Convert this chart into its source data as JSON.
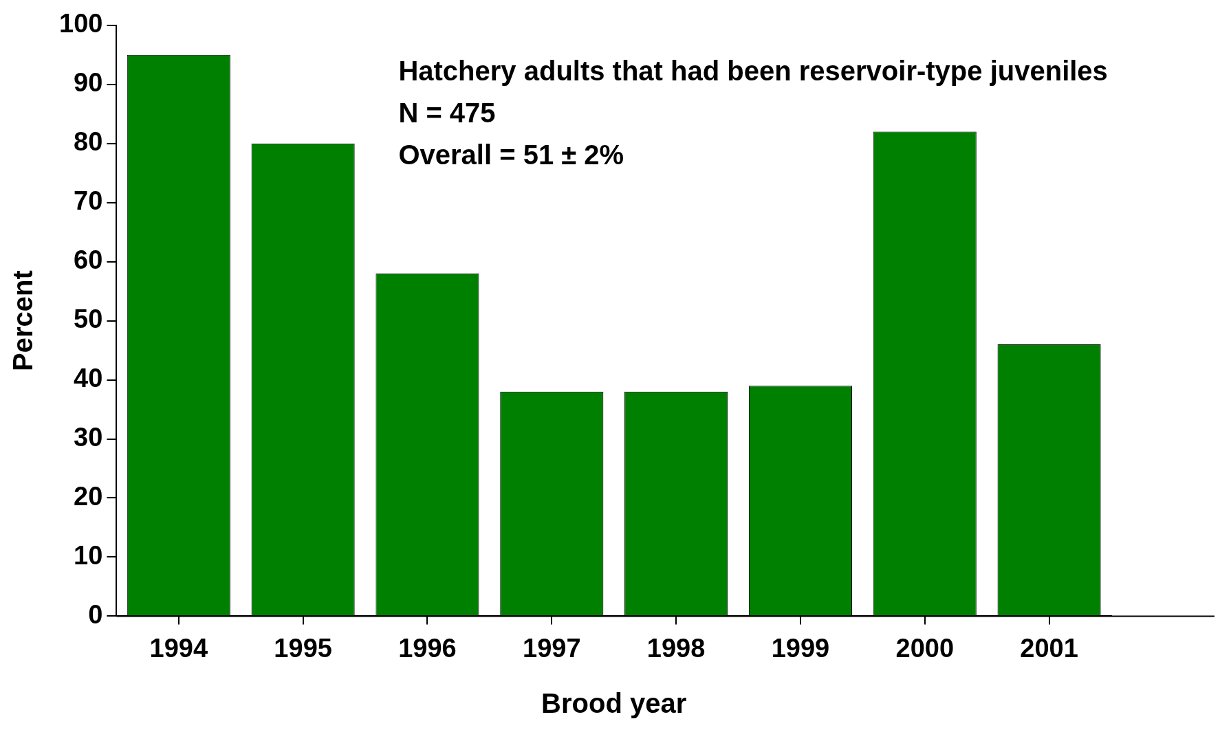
{
  "chart_data": {
    "type": "bar",
    "xlabel": "Brood year",
    "ylabel": "Percent",
    "categories": [
      "1994",
      "1995",
      "1996",
      "1997",
      "1998",
      "1999",
      "2000",
      "2001"
    ],
    "values": [
      95,
      80,
      58,
      38,
      38,
      39,
      82,
      46
    ],
    "color": "#008000",
    "ylim": [
      0,
      100
    ],
    "yticks": [
      0,
      10,
      20,
      30,
      40,
      50,
      60,
      70,
      80,
      90,
      100
    ],
    "grid": false,
    "legend": false,
    "annotations": [
      "Hatchery adults that had been reservoir-type juveniles",
      "N = 475",
      "Overall = 51 ± 2%"
    ]
  }
}
